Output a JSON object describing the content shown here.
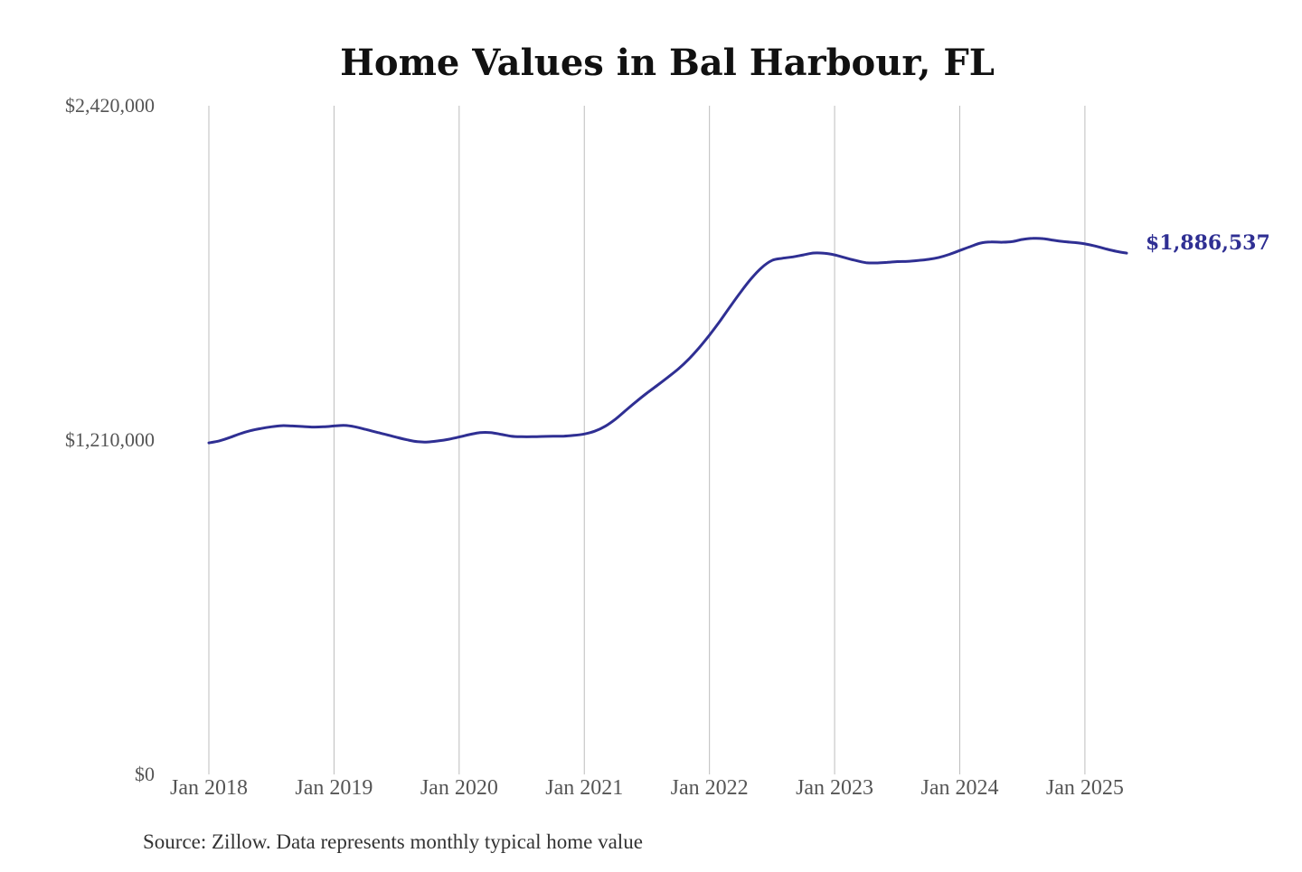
{
  "chart_data": {
    "type": "line",
    "title": "Home Values in Bal Harbour, FL",
    "source": "Source: Zillow. Data represents monthly typical home value",
    "y_tick_labels": [
      "$0",
      "$1,210,000",
      "$2,420,000"
    ],
    "y_tick_values": [
      0,
      1210000,
      2420000
    ],
    "ylim": [
      0,
      2420000
    ],
    "x_tick_labels": [
      "Jan 2018",
      "Jan 2019",
      "Jan 2020",
      "Jan 2021",
      "Jan 2022",
      "Jan 2023",
      "Jan 2024",
      "Jan 2025"
    ],
    "x_tick_values": [
      2018.0,
      2019.0,
      2020.0,
      2021.0,
      2022.0,
      2023.0,
      2024.0,
      2025.0
    ],
    "xlim": [
      2018.0,
      2025.333
    ],
    "grid": "vertical",
    "line_color": "#2f2f93",
    "end_value_label": "$1,886,537",
    "series": [
      {
        "x": [
          2018.0,
          2018.083,
          2018.167,
          2018.25,
          2018.333,
          2018.417,
          2018.5,
          2018.583,
          2018.667,
          2018.75,
          2018.833,
          2018.917,
          2019.0,
          2019.083,
          2019.167,
          2019.25,
          2019.333,
          2019.417,
          2019.5,
          2019.583,
          2019.667,
          2019.75,
          2019.833,
          2019.917,
          2020.0,
          2020.083,
          2020.167,
          2020.25,
          2020.333,
          2020.417,
          2020.5,
          2020.583,
          2020.667,
          2020.75,
          2020.833,
          2020.917,
          2021.0,
          2021.083,
          2021.167,
          2021.25,
          2021.333,
          2021.417,
          2021.5,
          2021.583,
          2021.667,
          2021.75,
          2021.833,
          2021.917,
          2022.0,
          2022.083,
          2022.167,
          2022.25,
          2022.333,
          2022.417,
          2022.5,
          2022.583,
          2022.667,
          2022.75,
          2022.833,
          2022.917,
          2023.0,
          2023.083,
          2023.167,
          2023.25,
          2023.333,
          2023.417,
          2023.5,
          2023.583,
          2023.667,
          2023.75,
          2023.833,
          2023.917,
          2024.0,
          2024.083,
          2024.167,
          2024.25,
          2024.333,
          2024.417,
          2024.5,
          2024.583,
          2024.667,
          2024.75,
          2024.833,
          2024.917,
          2025.0,
          2025.083,
          2025.167,
          2025.25,
          2025.333
        ],
        "y": [
          1200000,
          1207000,
          1219000,
          1233000,
          1244000,
          1252000,
          1258000,
          1262000,
          1261000,
          1259000,
          1257000,
          1258000,
          1261000,
          1263000,
          1258000,
          1249000,
          1239000,
          1230000,
          1220000,
          1211000,
          1204000,
          1203000,
          1207000,
          1213000,
          1221000,
          1230000,
          1237000,
          1237000,
          1231000,
          1224000,
          1222000,
          1222000,
          1223000,
          1224000,
          1224000,
          1227000,
          1232000,
          1242000,
          1260000,
          1286000,
          1318000,
          1350000,
          1380000,
          1408000,
          1437000,
          1467000,
          1502000,
          1544000,
          1590000,
          1640000,
          1694000,
          1746000,
          1794000,
          1834000,
          1860000,
          1868000,
          1873000,
          1880000,
          1887000,
          1886000,
          1880000,
          1870000,
          1860000,
          1852000,
          1851000,
          1853000,
          1856000,
          1857000,
          1860000,
          1864000,
          1871000,
          1882000,
          1896000,
          1910000,
          1923000,
          1927000,
          1926000,
          1928000,
          1936000,
          1940000,
          1939000,
          1933000,
          1928000,
          1925000,
          1920000,
          1912000,
          1902000,
          1893000,
          1886537
        ]
      }
    ]
  }
}
